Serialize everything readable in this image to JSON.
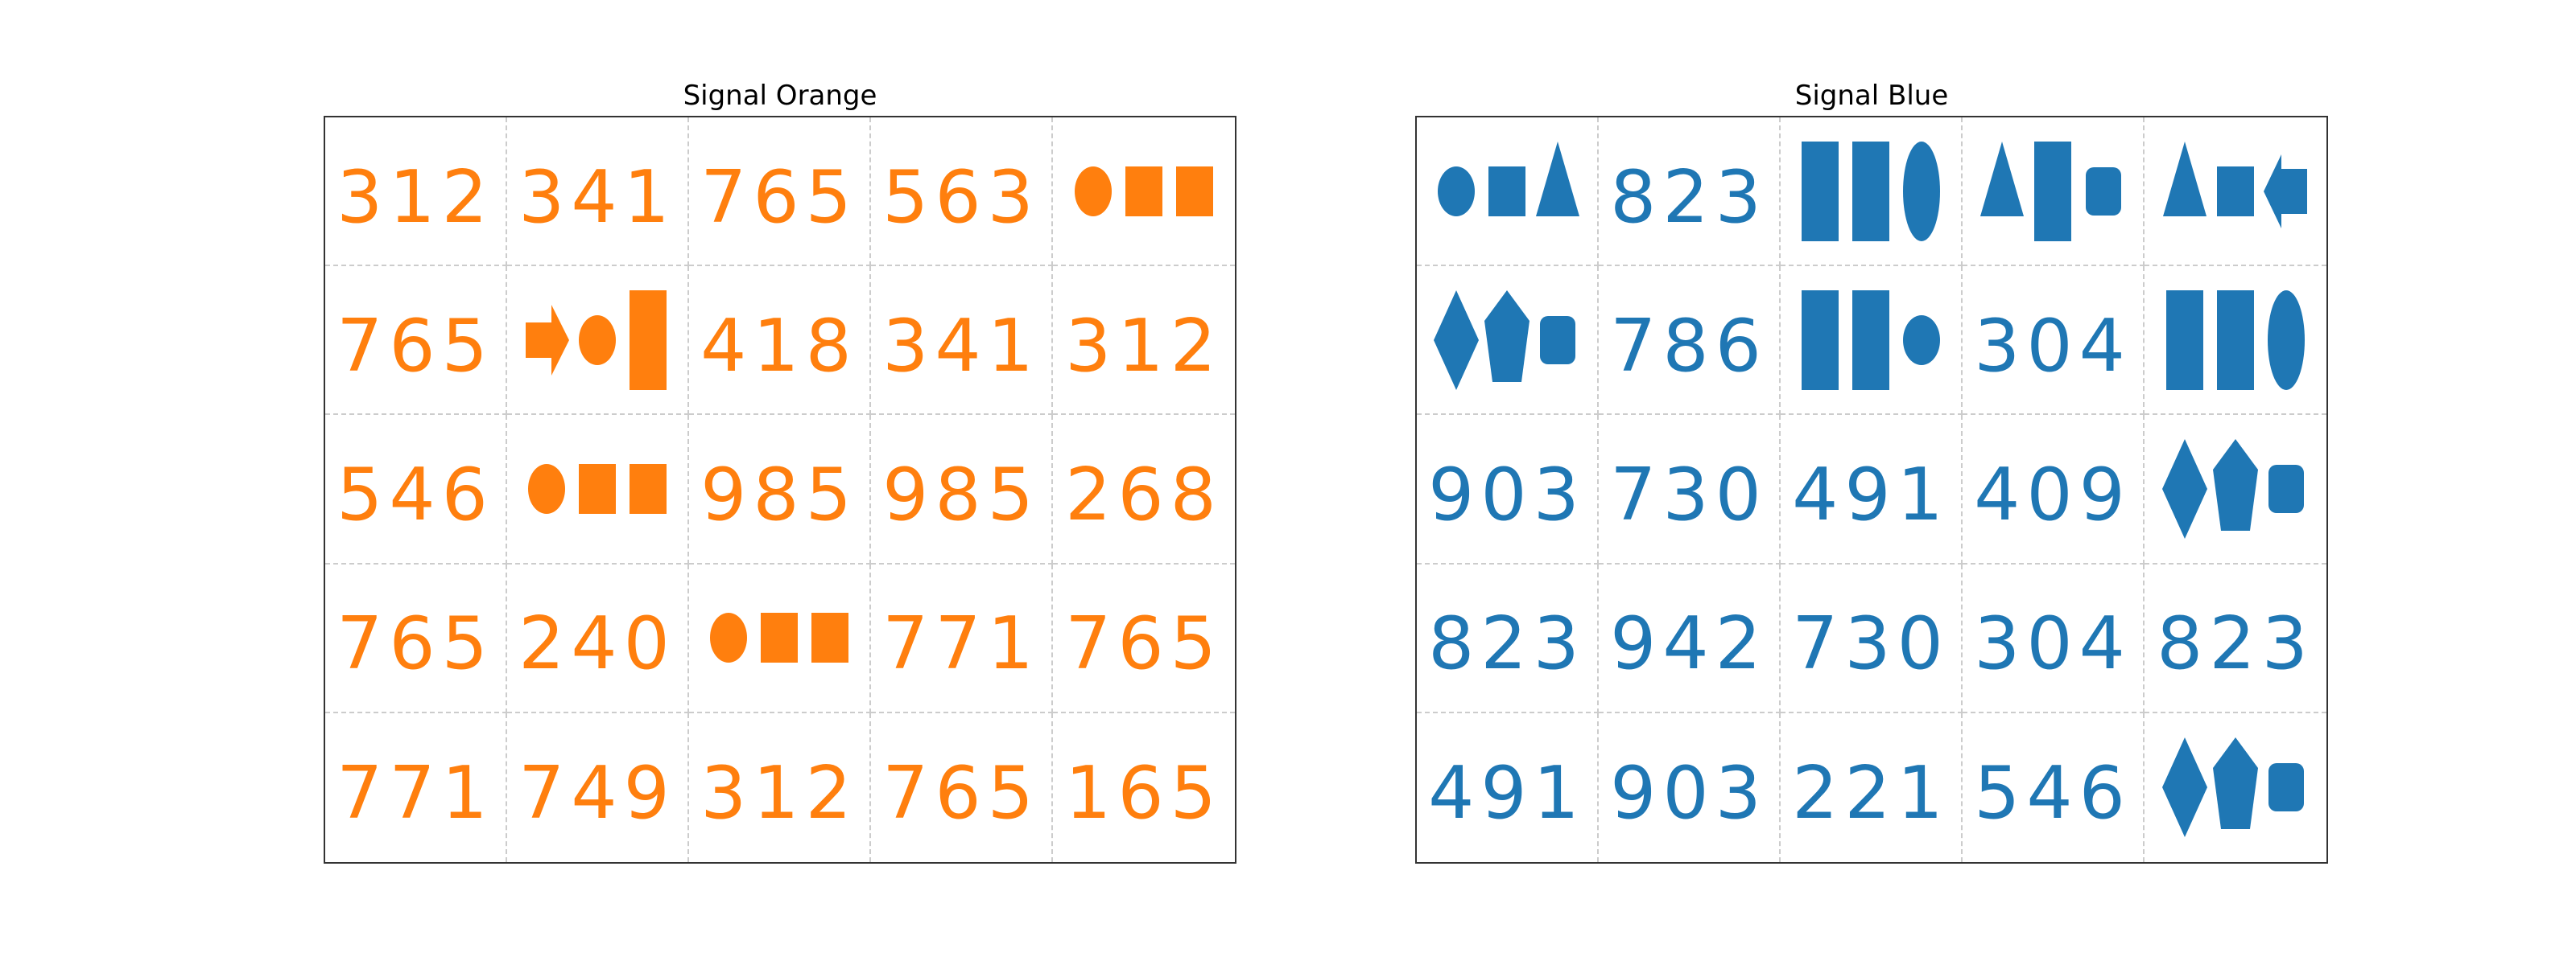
{
  "panels": [
    {
      "title": "Signal Orange",
      "color": "#ff7f0e",
      "cells": [
        [
          "312",
          "341",
          "765",
          "563",
          {
            "shapes": [
              "ellipse",
              "square",
              "square"
            ]
          }
        ],
        [
          "765",
          {
            "shapes": [
              "arrow-right",
              "ellipse",
              "tall-rect"
            ]
          },
          "418",
          "341",
          "312"
        ],
        [
          "546",
          {
            "shapes": [
              "ellipse",
              "square",
              "square"
            ]
          },
          "985",
          "985",
          "268"
        ],
        [
          "765",
          "240",
          {
            "shapes": [
              "ellipse",
              "square",
              "square"
            ]
          },
          "771",
          "765"
        ],
        [
          "771",
          "749",
          "312",
          "765",
          "165"
        ]
      ]
    },
    {
      "title": "Signal Blue",
      "color": "#1f77b4",
      "cells": [
        [
          {
            "shapes": [
              "ellipse",
              "square",
              "triangle"
            ]
          },
          "823",
          {
            "shapes": [
              "tall-rect",
              "tall-rect",
              "tall-ellipse"
            ]
          },
          {
            "shapes": [
              "triangle",
              "tall-rect",
              "rounded-rect"
            ]
          },
          {
            "shapes": [
              "triangle",
              "square",
              "arrow-left"
            ]
          }
        ],
        [
          {
            "shapes": [
              "diamond",
              "pentagon",
              "rounded-rect"
            ]
          },
          "786",
          {
            "shapes": [
              "tall-rect",
              "tall-rect",
              "ellipse"
            ]
          },
          "304",
          {
            "shapes": [
              "tall-rect",
              "tall-rect",
              "tall-ellipse"
            ]
          }
        ],
        [
          "903",
          "730",
          "491",
          "409",
          {
            "shapes": [
              "diamond",
              "pentagon",
              "rounded-rect"
            ]
          }
        ],
        [
          "823",
          "942",
          "730",
          "304",
          "823"
        ],
        [
          "491",
          "903",
          "221",
          "546",
          {
            "shapes": [
              "diamond",
              "pentagon",
              "rounded-rect"
            ]
          }
        ]
      ]
    }
  ]
}
